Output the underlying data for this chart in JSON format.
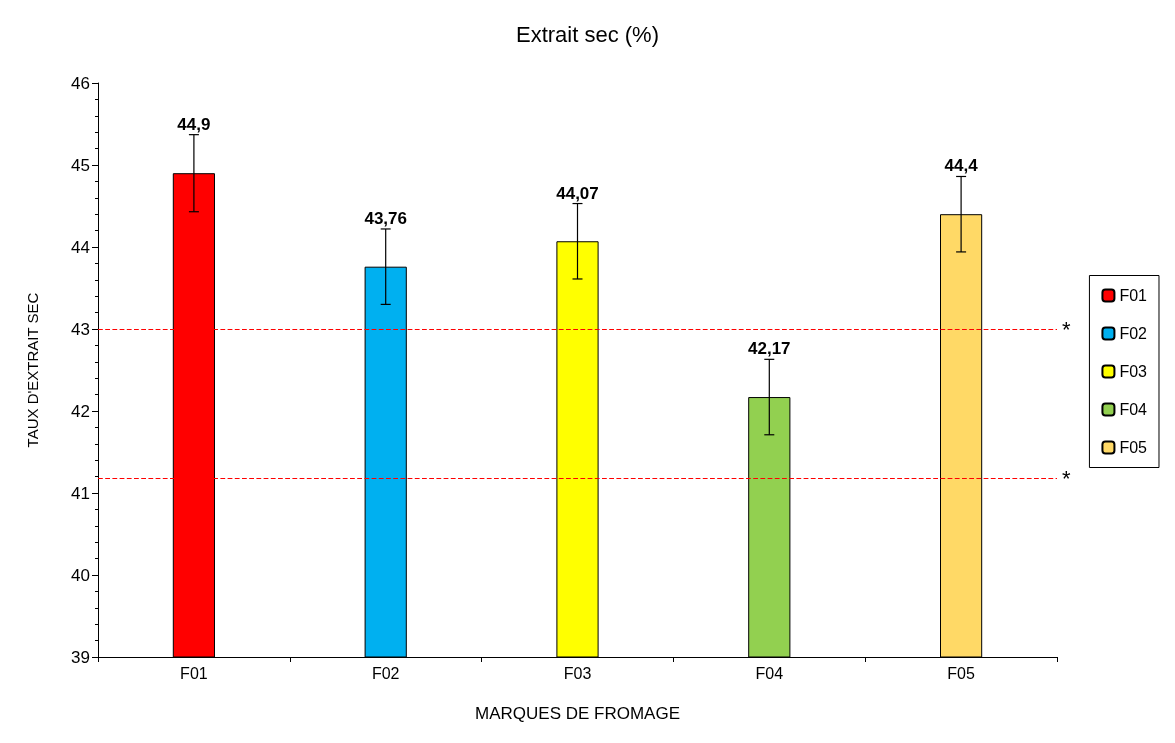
{
  "chart_data": {
    "type": "bar",
    "title": "Extrait sec (%)",
    "xlabel": "MARQUES DE FROMAGE",
    "ylabel": "TAUX D'EXTRAIT SEC",
    "categories": [
      "F01",
      "F02",
      "F03",
      "F04",
      "F05"
    ],
    "series": [
      {
        "name": "F01",
        "color": "#ff0000",
        "values": [
          44.9,
          null,
          null,
          null,
          null
        ],
        "errors": [
          0.47,
          null,
          null,
          null,
          null
        ],
        "value_labels": [
          "44,9",
          null,
          null,
          null,
          null
        ]
      },
      {
        "name": "F02",
        "color": "#00b0f0",
        "values": [
          null,
          43.76,
          null,
          null,
          null
        ],
        "errors": [
          null,
          0.46,
          null,
          null,
          null
        ],
        "value_labels": [
          null,
          "43,76",
          null,
          null,
          null
        ]
      },
      {
        "name": "F03",
        "color": "#ffff00",
        "values": [
          null,
          null,
          44.07,
          null,
          null
        ],
        "errors": [
          null,
          null,
          0.46,
          null,
          null
        ],
        "value_labels": [
          null,
          null,
          "44,07",
          null,
          null
        ]
      },
      {
        "name": "F04",
        "color": "#92d050",
        "values": [
          null,
          null,
          null,
          42.17,
          null
        ],
        "errors": [
          null,
          null,
          null,
          0.46,
          null
        ],
        "value_labels": [
          null,
          null,
          null,
          "42,17",
          null
        ]
      },
      {
        "name": "F05",
        "color": "#ffd966",
        "values": [
          null,
          null,
          null,
          null,
          44.4
        ],
        "errors": [
          null,
          null,
          null,
          null,
          0.46
        ],
        "value_labels": [
          null,
          null,
          null,
          null,
          "44,4"
        ]
      }
    ],
    "ylim": [
      39,
      46
    ],
    "yticks": [
      39,
      40,
      41,
      42,
      43,
      44,
      45,
      46
    ],
    "ref_lines": [
      {
        "axis": "y",
        "value": 43,
        "label": "*",
        "color": "#ff0000",
        "line_style": "dashed"
      },
      {
        "axis": "y",
        "value": 41.18,
        "label": "*",
        "color": "#ff0000",
        "line_style": "dashed"
      }
    ],
    "grid": false,
    "legend": "right"
  }
}
